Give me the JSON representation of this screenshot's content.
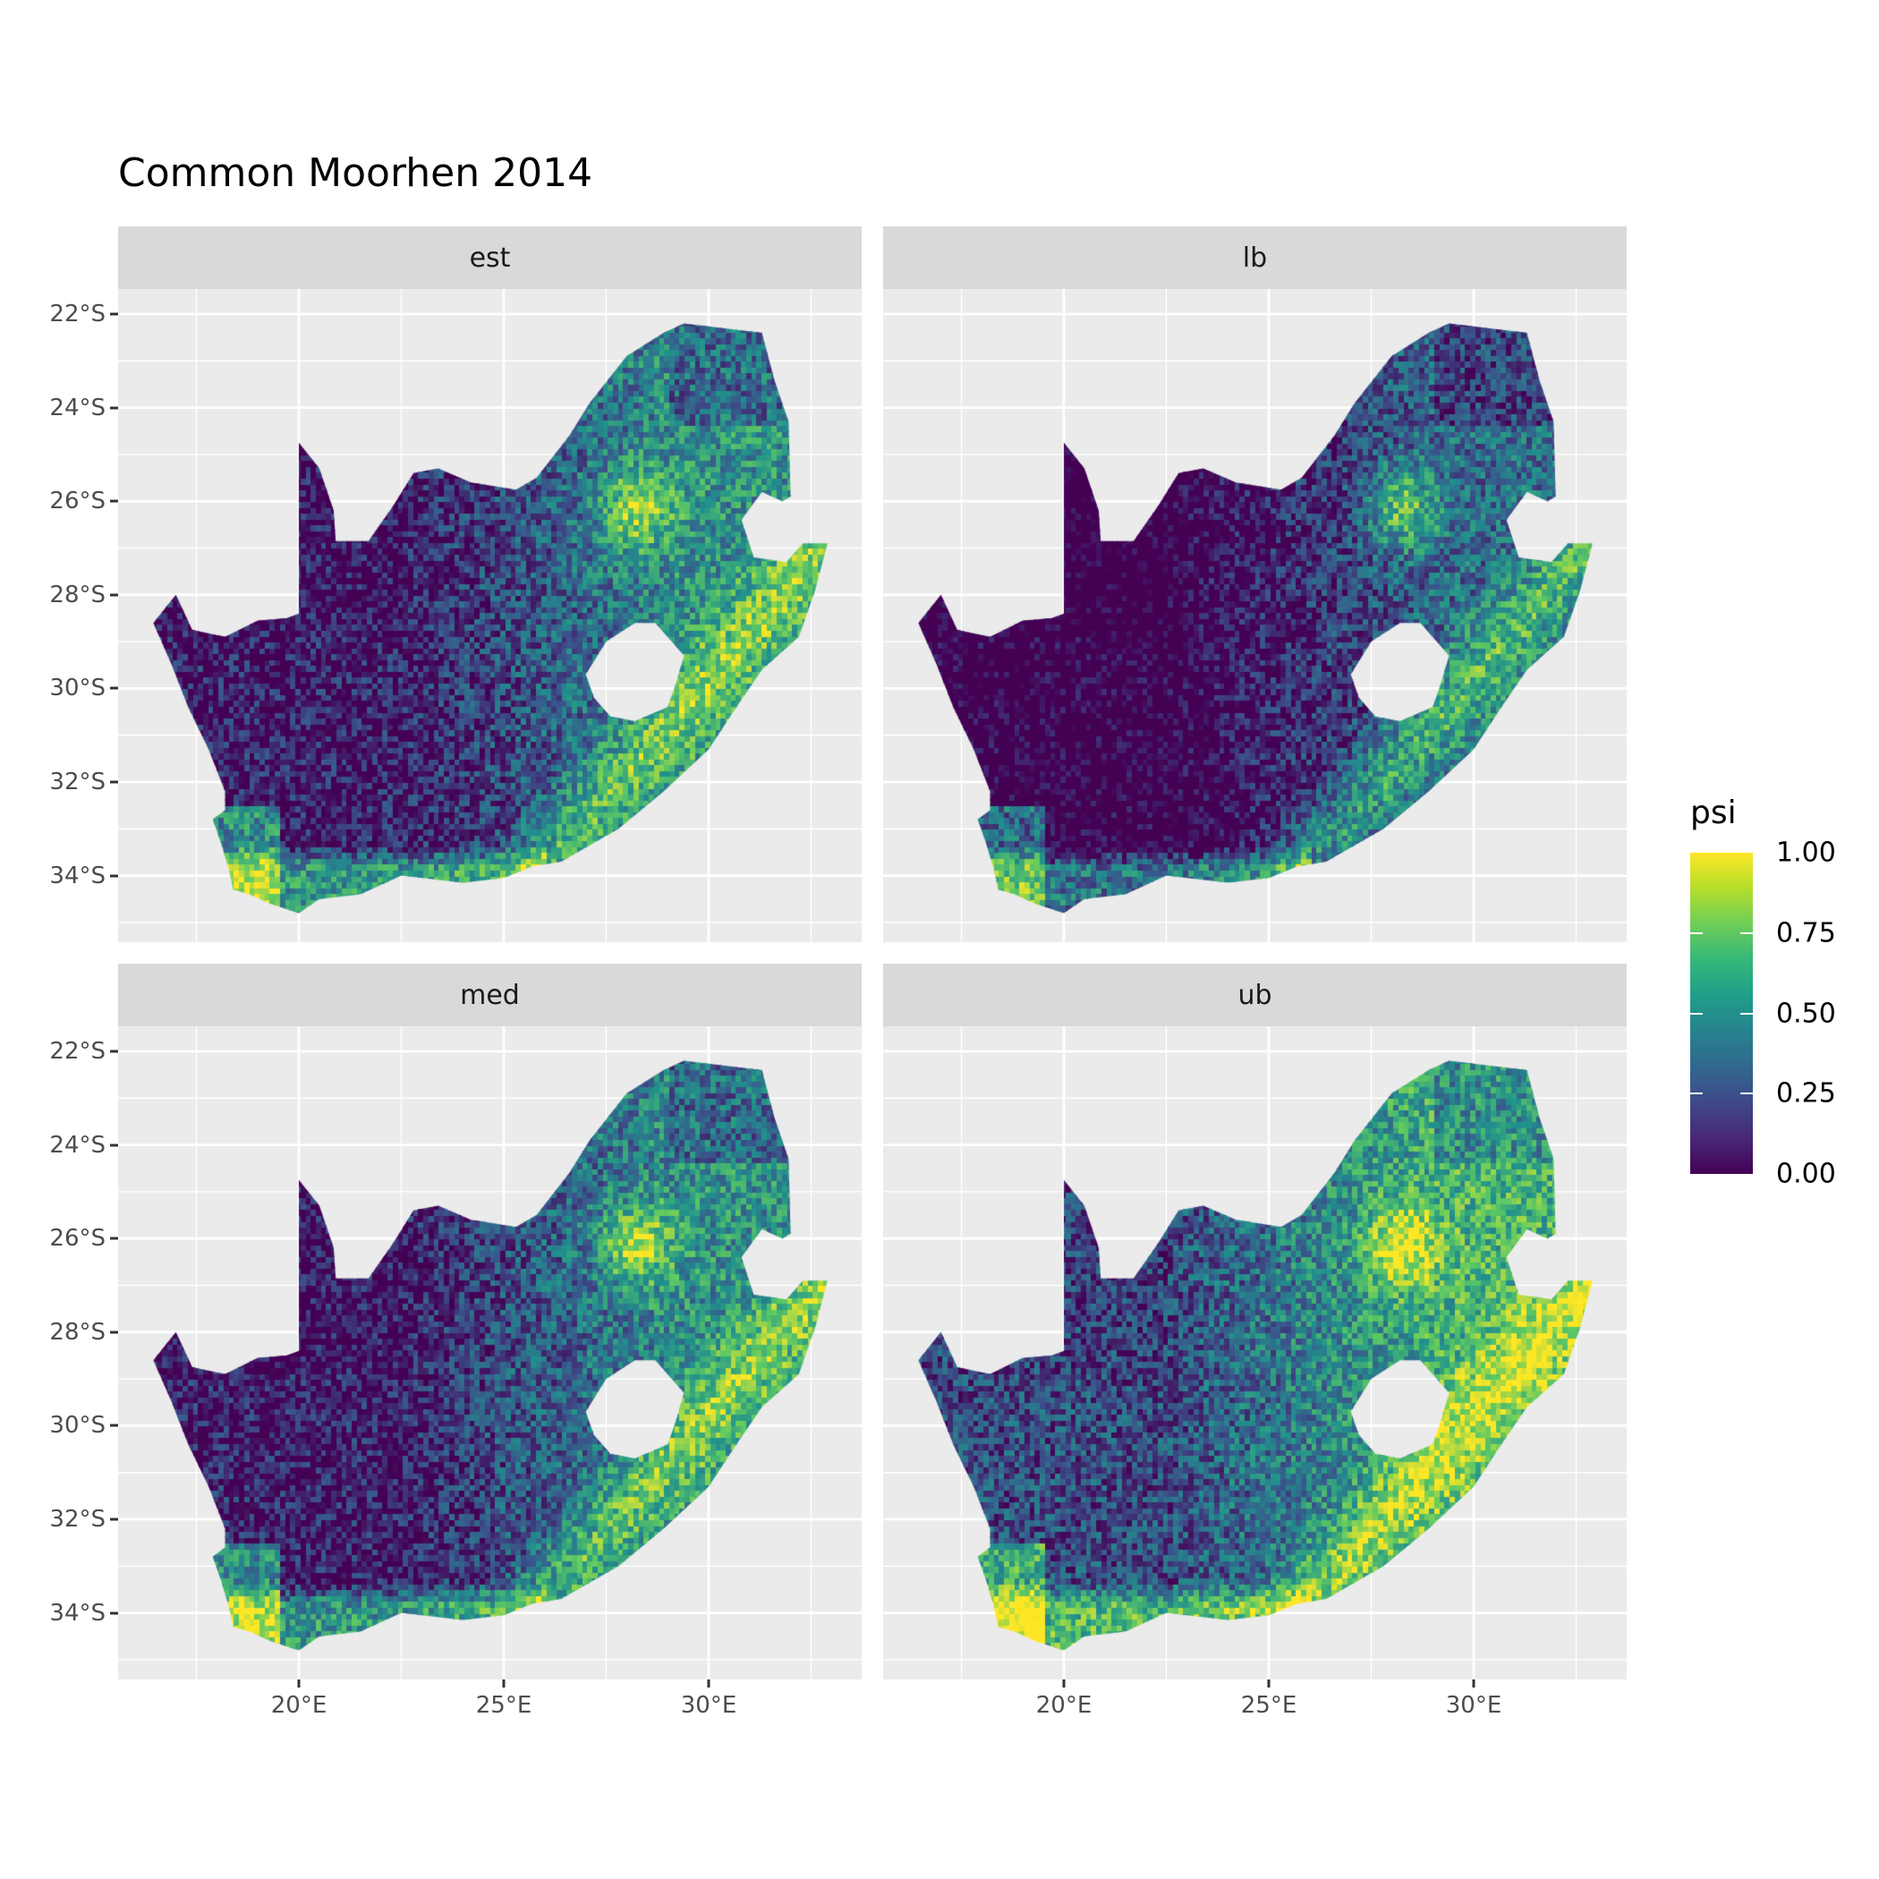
{
  "title": "Common Moorhen 2014",
  "facets": [
    {
      "label": "est",
      "offset": 0.0
    },
    {
      "label": "lb",
      "offset": -0.15
    },
    {
      "label": "med",
      "offset": 0.0
    },
    {
      "label": "ub",
      "offset": 0.15
    }
  ],
  "axes": {
    "x_ticks": [
      {
        "value": 20,
        "label": "20°E"
      },
      {
        "value": 25,
        "label": "25°E"
      },
      {
        "value": 30,
        "label": "30°E"
      }
    ],
    "y_ticks": [
      {
        "value": -22,
        "label": "22°S"
      },
      {
        "value": -24,
        "label": "24°S"
      },
      {
        "value": -26,
        "label": "26°S"
      },
      {
        "value": -28,
        "label": "28°S"
      },
      {
        "value": -30,
        "label": "30°S"
      },
      {
        "value": -32,
        "label": "32°S"
      },
      {
        "value": -34,
        "label": "34°S"
      }
    ],
    "x_range": [
      15.6,
      33.7
    ],
    "y_range": [
      -35.4,
      -21.5
    ]
  },
  "legend": {
    "title": "psi",
    "ticks": [
      {
        "value": 0,
        "label": "0.00"
      },
      {
        "value": 0.25,
        "label": "0.25"
      },
      {
        "value": 0.5,
        "label": "0.50"
      },
      {
        "value": 0.75,
        "label": "0.75"
      },
      {
        "value": 1,
        "label": "1.00"
      }
    ],
    "colormap": "viridis",
    "colors": [
      "#440154",
      "#3b528b",
      "#21918c",
      "#5ec962",
      "#fde725"
    ]
  },
  "colors": {
    "panel_bg": "#EBEBEB",
    "strip_bg": "#D9D9D9",
    "grid": "#FFFFFF"
  }
}
